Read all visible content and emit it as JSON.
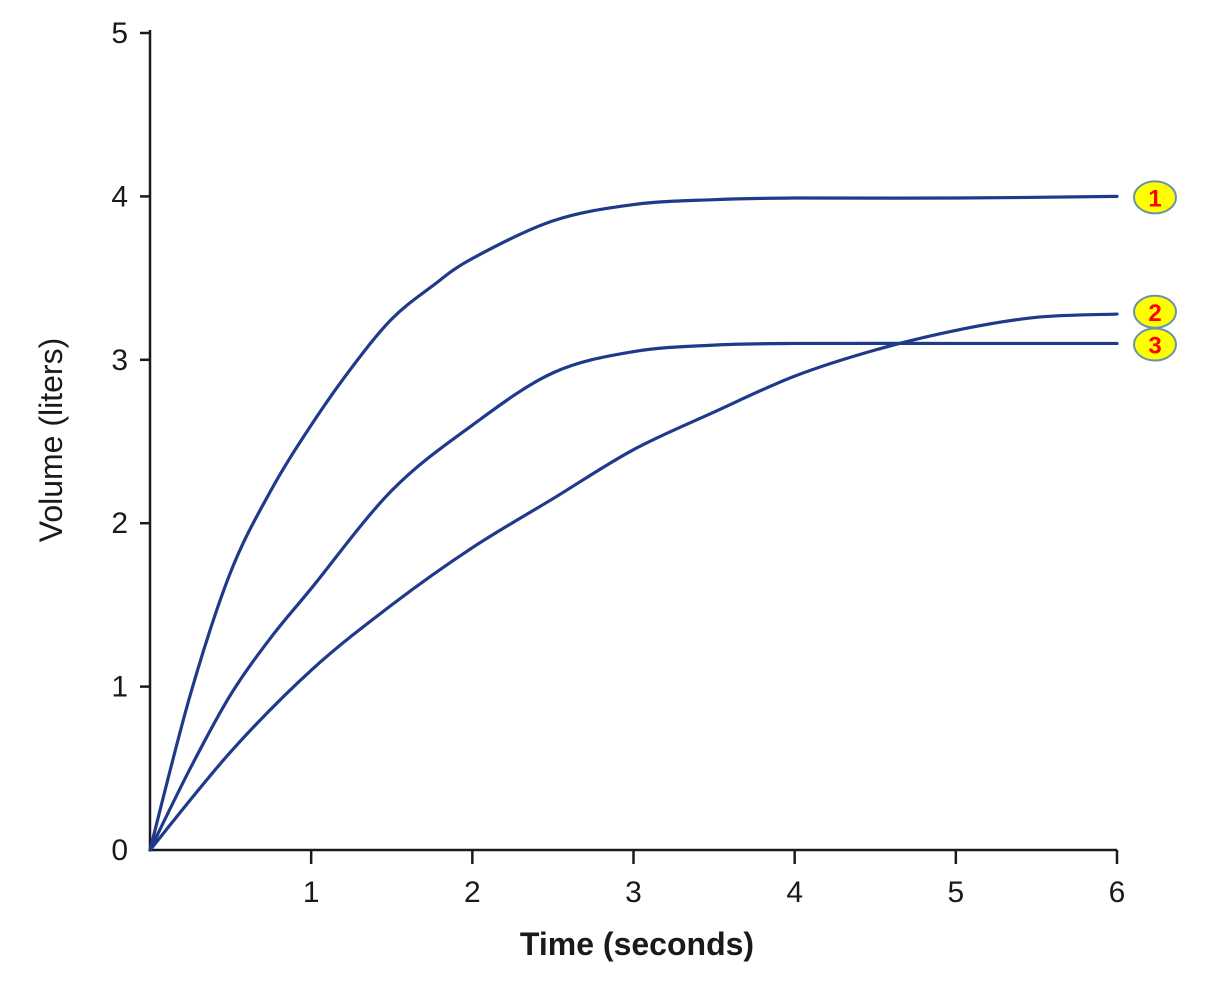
{
  "chart_data": {
    "type": "line",
    "xlabel": "Time (seconds)",
    "ylabel": "Volume (liters)",
    "xlim": [
      0,
      6
    ],
    "ylim": [
      0,
      5
    ],
    "x_ticks": [
      "1",
      "2",
      "3",
      "4",
      "5",
      "6"
    ],
    "y_ticks": [
      "0",
      "1",
      "2",
      "3",
      "4",
      "5"
    ],
    "grid": false,
    "series": [
      {
        "name": "1",
        "color": "#1f3a8a",
        "x": [
          0,
          0.25,
          0.5,
          0.75,
          1,
          1.25,
          1.5,
          1.75,
          2,
          2.5,
          3,
          3.5,
          4,
          5,
          6
        ],
        "y": [
          0,
          0.95,
          1.7,
          2.2,
          2.6,
          2.95,
          3.25,
          3.45,
          3.62,
          3.85,
          3.95,
          3.98,
          3.99,
          3.99,
          4.0
        ]
      },
      {
        "name": "2",
        "color": "#1f3a8a",
        "x": [
          0,
          0.5,
          1,
          1.5,
          2,
          2.5,
          3,
          3.5,
          4,
          4.5,
          5,
          5.5,
          6
        ],
        "y": [
          0,
          0.6,
          1.1,
          1.5,
          1.85,
          2.15,
          2.45,
          2.68,
          2.9,
          3.06,
          3.18,
          3.26,
          3.28
        ]
      },
      {
        "name": "3",
        "color": "#1f3a8a",
        "x": [
          0,
          0.25,
          0.5,
          0.75,
          1,
          1.5,
          2,
          2.5,
          3,
          3.5,
          4,
          5,
          6
        ],
        "y": [
          0,
          0.5,
          0.95,
          1.3,
          1.6,
          2.2,
          2.6,
          2.92,
          3.05,
          3.09,
          3.1,
          3.1,
          3.1
        ]
      }
    ],
    "labels": [
      {
        "text": "1",
        "y": 4.0
      },
      {
        "text": "2",
        "y": 3.3
      },
      {
        "text": "3",
        "y": 3.1
      }
    ],
    "label_style": {
      "fill": "#ffff00",
      "stroke": "#6b93a8",
      "text_color": "#ff0000"
    }
  }
}
